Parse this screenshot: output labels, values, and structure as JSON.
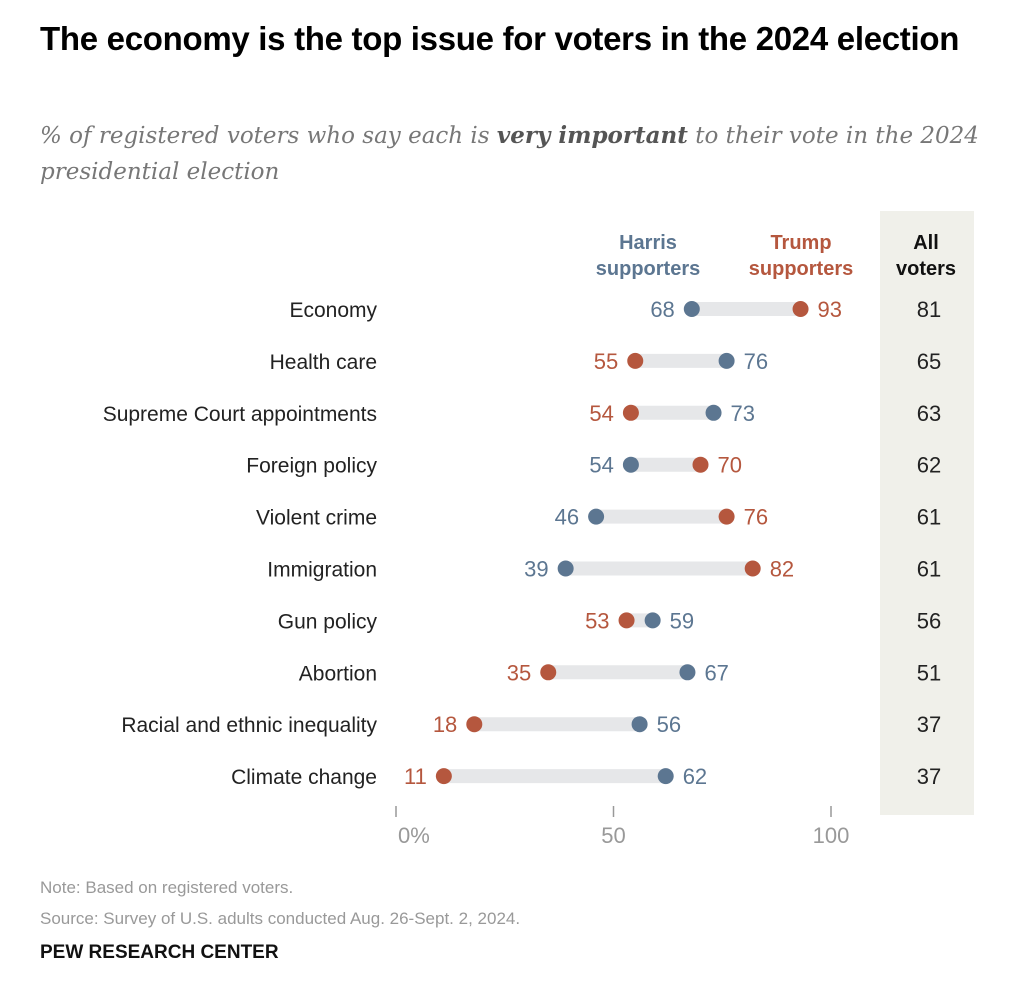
{
  "title": "The economy is the top issue for voters in the 2024 election",
  "subtitle": {
    "before": "% of registered voters who say each is ",
    "bold": "very important",
    "after": " to their vote in the 2024 presidential election"
  },
  "colors": {
    "harris": "#5c7691",
    "trump": "#b5573e",
    "connector": "#e6e7e9",
    "all_voters_bg": "#f0f0ea",
    "axis": "#999999"
  },
  "chart_data": {
    "type": "dot-plot",
    "title": "The economy is the top issue for voters in the 2024 election",
    "xlabel": "",
    "ylabel": "",
    "xlim": [
      0,
      100
    ],
    "x_ticks": [
      0,
      50,
      100
    ],
    "x_tick_labels": [
      "0%",
      "50",
      "100"
    ],
    "categories": [
      "Economy",
      "Health care",
      "Supreme Court appointments",
      "Foreign policy",
      "Violent crime",
      "Immigration",
      "Gun policy",
      "Abortion",
      "Racial and ethnic inequality",
      "Climate change"
    ],
    "series": [
      {
        "name": "Harris supporters",
        "header": [
          "Harris",
          "supporters"
        ],
        "values": [
          68,
          76,
          73,
          54,
          46,
          39,
          59,
          67,
          56,
          62
        ]
      },
      {
        "name": "Trump supporters",
        "header": [
          "Trump",
          "supporters"
        ],
        "values": [
          93,
          55,
          54,
          70,
          76,
          82,
          53,
          35,
          18,
          11
        ]
      }
    ],
    "all_voters": {
      "header": [
        "All",
        "voters"
      ],
      "values": [
        81,
        65,
        63,
        62,
        61,
        61,
        56,
        51,
        37,
        37
      ]
    },
    "legend": "top (column headers above dots)",
    "grid": false
  },
  "footer": {
    "note": "Note: Based on registered voters.",
    "source": "Source: Survey of U.S. adults conducted Aug. 26-Sept. 2, 2024.",
    "brand": "PEW RESEARCH CENTER"
  }
}
